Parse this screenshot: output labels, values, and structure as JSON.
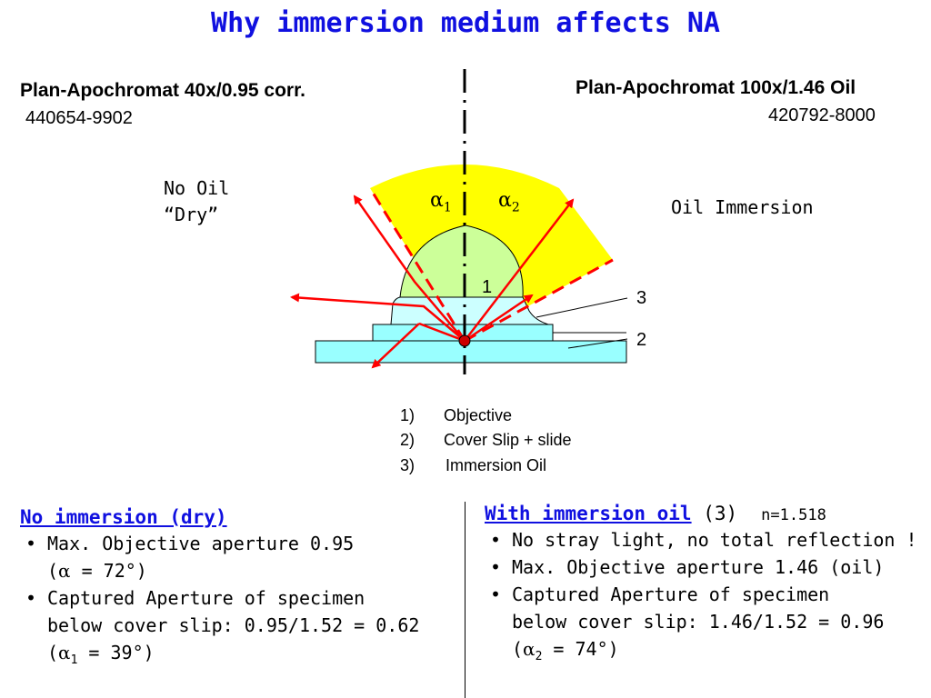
{
  "title": "Why immersion medium affects NA",
  "left_objective": {
    "name": "Plan-Apochromat 40x/0.95 corr.",
    "number": "440654-9902"
  },
  "right_objective": {
    "name": "Plan-Apochromat 100x/1.46 Oil",
    "number": "420792-8000"
  },
  "diagram": {
    "left_label_line1": "No Oil",
    "left_label_line2": "“Dry”",
    "right_label": "Oil Immersion",
    "alpha1": "α",
    "alpha1_sub": "1",
    "alpha2": "α",
    "alpha2_sub": "2",
    "callout_1": "1",
    "callout_2": "2",
    "callout_3": "3",
    "colors": {
      "cone": "#ffff00",
      "objective": "#ccff99",
      "oil": "#ccffff",
      "slide": "#99ffff",
      "rays": "#ff0000"
    }
  },
  "legend": [
    {
      "num": "1)",
      "text": "Objective"
    },
    {
      "num": "2)",
      "text": "Cover Slip + slide"
    },
    {
      "num": "3)",
      "text": "Immersion Oil"
    }
  ],
  "left_column": {
    "heading": "No immersion (dry)",
    "bullet1_line1": "Max. Objective aperture 0.95",
    "bullet1_line2_sym": "α",
    "bullet1_line2_rest": " = 72°)",
    "bullet2_line1": "Captured Aperture of specimen",
    "bullet2_line2": "below cover slip: 0.95/1.52 = 0.62",
    "bullet2_line3_sym": "α",
    "bullet2_line3_sub": "1",
    "bullet2_line3_rest": " = 39°)"
  },
  "right_column": {
    "heading": "With immersion oil",
    "heading_suffix": " (3)",
    "n_value": "n=1.518",
    "bullet1": "No stray light, no total reflection !",
    "bullet2": "Max. Objective aperture 1.46 (oil)",
    "bullet3_line1": "Captured Aperture of specimen",
    "bullet3_line2": "below cover slip: 1.46/1.52 = 0.96",
    "bullet3_line3_sym": "α",
    "bullet3_line3_sub": "2",
    "bullet3_line3_rest": " = 74°)"
  }
}
